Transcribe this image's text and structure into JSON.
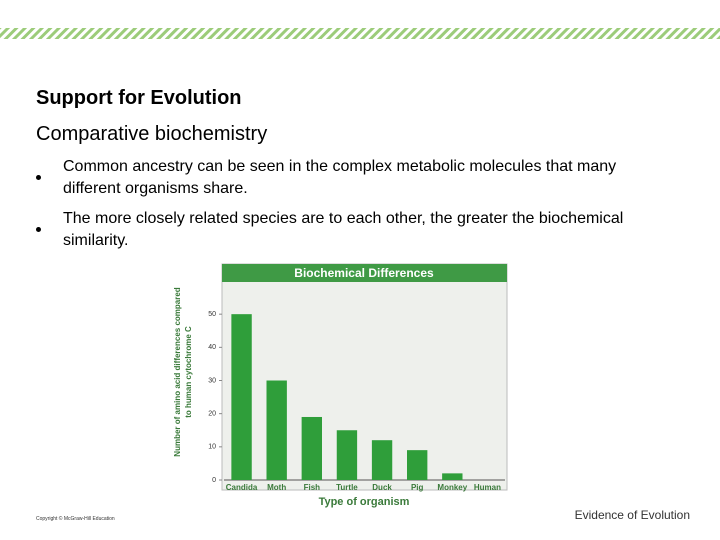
{
  "header": {
    "title": "Support for Evolution",
    "subtitle": "Comparative biochemistry"
  },
  "bullets": [
    "Common ancestry can be seen in the complex metabolic molecules that many different organisms share.",
    "The more closely related species are to each other, the greater the biochemical similarity."
  ],
  "chart_data": {
    "type": "bar",
    "title": "Biochemical Differences",
    "xlabel": "Type of organism",
    "ylabel": [
      "Number of amino acid differences compared",
      "to human cytochrome C"
    ],
    "categories": [
      "Candida",
      "Moth",
      "Fish",
      "Turtle",
      "Duck",
      "Pig",
      "Monkey",
      "Human"
    ],
    "values": [
      50,
      30,
      19,
      15,
      12,
      9,
      2,
      0
    ],
    "color": "#2f9e3a",
    "ylim": [
      0,
      60
    ],
    "yticks": [
      0,
      10,
      20,
      30,
      40,
      50
    ],
    "grid": false
  },
  "copyright": "Copyright © McGraw-Hill Education",
  "footer": "Evidence of Evolution"
}
